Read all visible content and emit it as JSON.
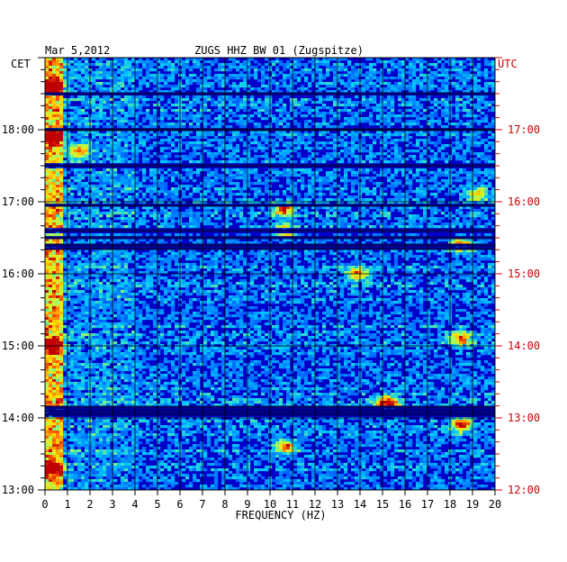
{
  "chart_data": {
    "type": "heatmap",
    "date": "Mar 5,2012",
    "title": "ZUGS HHZ BW 01 (Zugspitze)",
    "left_axis_label": "CET",
    "right_axis_label": "UTC",
    "xlabel": "FREQUENCY (HZ)",
    "xlim": [
      0,
      20
    ],
    "x_ticks": [
      "0",
      "1",
      "2",
      "3",
      "4",
      "5",
      "6",
      "7",
      "8",
      "9",
      "10",
      "11",
      "12",
      "13",
      "14",
      "15",
      "16",
      "17",
      "18",
      "19",
      "20"
    ],
    "cet_time_range": [
      "13:00",
      "19:00"
    ],
    "cet_ticks": [
      {
        "hour": 13,
        "label": "13:00"
      },
      {
        "hour": 14,
        "label": "14:00"
      },
      {
        "hour": 15,
        "label": "15:00"
      },
      {
        "hour": 16,
        "label": "16:00"
      },
      {
        "hour": 17,
        "label": "17:00"
      },
      {
        "hour": 18,
        "label": "18:00"
      }
    ],
    "utc_ticks": [
      {
        "hour": 13,
        "label": "12:00"
      },
      {
        "hour": 14,
        "label": "13:00"
      },
      {
        "hour": 15,
        "label": "14:00"
      },
      {
        "hour": 16,
        "label": "15:00"
      },
      {
        "hour": 17,
        "label": "16:00"
      },
      {
        "hour": 18,
        "label": "17:00"
      }
    ],
    "colormap": [
      "#00007a",
      "#0000d0",
      "#0050ff",
      "#00c8ff",
      "#a0ff60",
      "#ffe000",
      "#ff6000",
      "#c00000"
    ],
    "bright_features": [
      {
        "freq_hz": 0.3,
        "hour": 18.6,
        "level": 0.95
      },
      {
        "freq_hz": 0.3,
        "hour": 17.9,
        "level": 0.9
      },
      {
        "freq_hz": 0.3,
        "hour": 15.0,
        "level": 0.85
      },
      {
        "freq_hz": 0.3,
        "hour": 13.3,
        "level": 0.8
      },
      {
        "freq_hz": 1.5,
        "hour": 17.7,
        "level": 0.6
      },
      {
        "freq_hz": 10.6,
        "hour": 16.9,
        "level": 0.7
      },
      {
        "freq_hz": 10.7,
        "hour": 16.6,
        "level": 0.6
      },
      {
        "freq_hz": 10.7,
        "hour": 13.6,
        "level": 0.6
      },
      {
        "freq_hz": 13.9,
        "hour": 16.0,
        "level": 0.6
      },
      {
        "freq_hz": 15.2,
        "hour": 14.2,
        "level": 0.95
      },
      {
        "freq_hz": 18.5,
        "hour": 16.4,
        "level": 0.7
      },
      {
        "freq_hz": 18.5,
        "hour": 15.1,
        "level": 0.6
      },
      {
        "freq_hz": 18.5,
        "hour": 13.9,
        "level": 0.7
      },
      {
        "freq_hz": 19.2,
        "hour": 17.1,
        "level": 0.5
      }
    ],
    "quiet_bands_hours": [
      14.05,
      14.1,
      14.15,
      16.35,
      16.4,
      16.5,
      16.6,
      16.95,
      17.5,
      18.0,
      18.5
    ],
    "grid": true
  }
}
